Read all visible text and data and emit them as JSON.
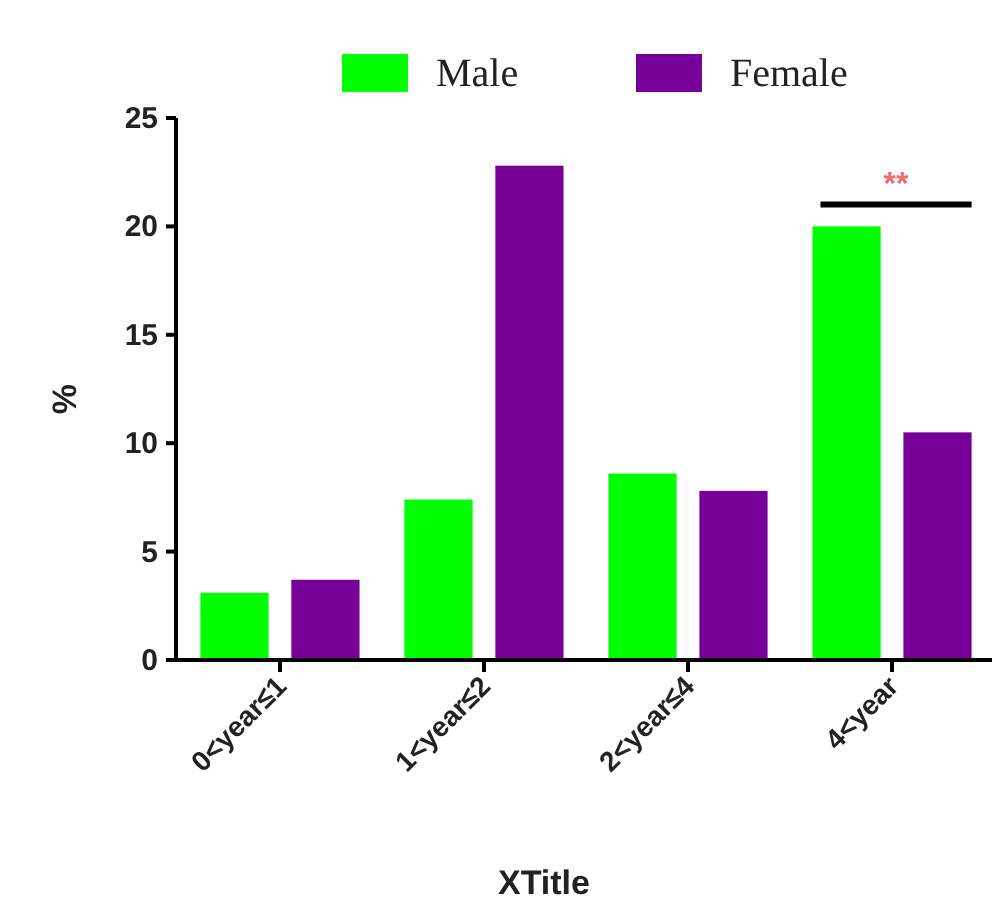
{
  "chart_data": {
    "type": "bar",
    "xlabel": "XTitle",
    "ylabel": "%",
    "categories": [
      "0<year≤1",
      "1<year≤2",
      "2<year≤4",
      "4<year"
    ],
    "series": [
      {
        "name": "Male",
        "color": "#00ff00",
        "values": [
          3.1,
          7.4,
          8.6,
          20
        ]
      },
      {
        "name": "Female",
        "color": "#770099",
        "values": [
          3.7,
          22.8,
          7.8,
          10.5
        ]
      }
    ],
    "ylim": [
      0,
      25
    ],
    "yticks": [
      0,
      5,
      10,
      15,
      20,
      25
    ],
    "grid": false,
    "legend": "top",
    "annotations": [
      "**"
    ]
  }
}
